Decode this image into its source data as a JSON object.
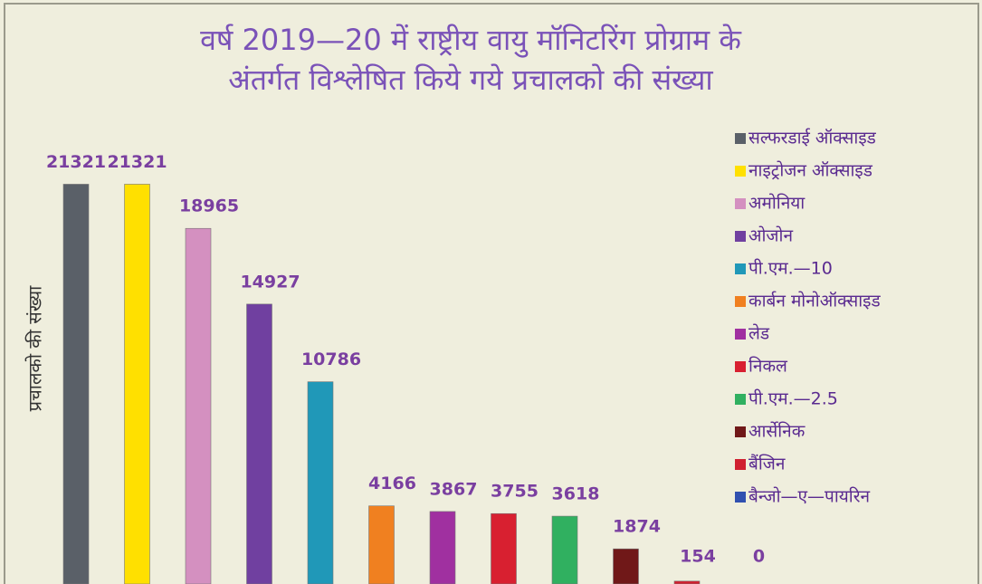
{
  "chart_data": {
    "type": "bar",
    "title": [
      "वर्ष 2019—20 में राष्ट्रीय वायु मॉनिटरिंग प्रोग्राम के",
      "अंतर्गत विश्लेषित किये गये प्रचालको की संख्या"
    ],
    "y_label": "प्रचालको की संख्या",
    "categories": [
      "सल्फरडाई ऑक्साइड",
      "नाइट्रोजन ऑक्साइड",
      "अमोनिया",
      "ओजोन",
      "पी.एम.—10",
      "कार्बन मोनोऑक्साइड",
      "लेड",
      "निकल",
      "पी.एम.—2.5",
      "आर्सेनिक",
      "बैंजिन",
      "बैन्जो—ए—पायरिन"
    ],
    "values": [
      21321,
      21321,
      18965,
      14927,
      10786,
      4166,
      3867,
      3755,
      3618,
      1874,
      154,
      0
    ],
    "colors": [
      "#5a6068",
      "#ffe000",
      "#d490c0",
      "#7040a0",
      "#2098b8",
      "#f08020",
      "#a030a0",
      "#d82030",
      "#30b060",
      "#701818",
      "#d02030",
      "#3050b0"
    ],
    "ylim": [
      0,
      31000
    ],
    "legend": "right"
  }
}
